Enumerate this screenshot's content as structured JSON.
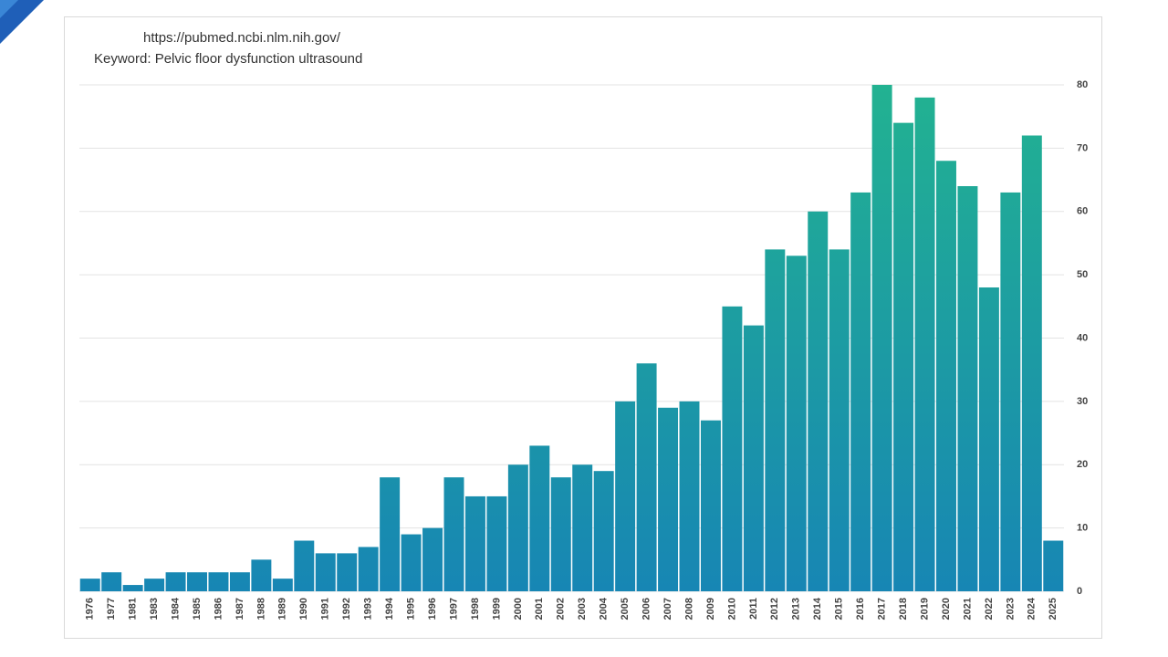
{
  "chart_data": {
    "type": "bar",
    "subtitle": "https://pubmed.ncbi.nlm.nih.gov/",
    "title": "Keyword: Pelvic floor dysfunction ultrasound",
    "categories": [
      "1976",
      "1977",
      "1981",
      "1983",
      "1984",
      "1985",
      "1986",
      "1987",
      "1988",
      "1989",
      "1990",
      "1991",
      "1992",
      "1993",
      "1994",
      "1995",
      "1996",
      "1997",
      "1998",
      "1999",
      "2000",
      "2001",
      "2002",
      "2003",
      "2004",
      "2005",
      "2006",
      "2007",
      "2008",
      "2009",
      "2010",
      "2011",
      "2012",
      "2013",
      "2014",
      "2015",
      "2016",
      "2017",
      "2018",
      "2019",
      "2020",
      "2021",
      "2022",
      "2023",
      "2024",
      "2025"
    ],
    "values": [
      2,
      3,
      1,
      2,
      3,
      3,
      3,
      3,
      5,
      2,
      8,
      6,
      6,
      7,
      18,
      9,
      10,
      18,
      15,
      15,
      20,
      23,
      18,
      20,
      19,
      30,
      36,
      29,
      30,
      27,
      45,
      42,
      54,
      53,
      60,
      54,
      63,
      80,
      74,
      78,
      68,
      64,
      48,
      63,
      72,
      8
    ],
    "color": "#22b291",
    "color_bottom": "#1786b4",
    "ylim": [
      0,
      80
    ],
    "yticks": [
      0,
      10,
      20,
      30,
      40,
      50,
      60,
      70,
      80
    ],
    "y_axis_side": "right",
    "grid": true
  }
}
